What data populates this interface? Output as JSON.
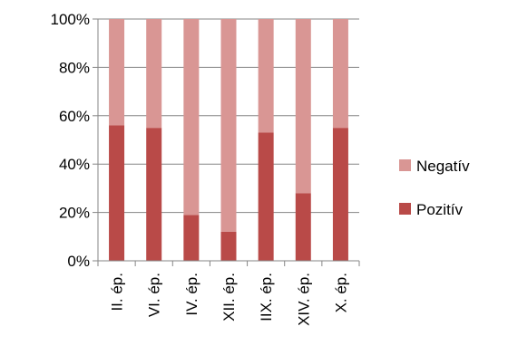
{
  "chart_data": {
    "type": "bar",
    "stacked": true,
    "percent_stacked": true,
    "categories": [
      "II. ép.",
      "VI. ép.",
      "IV. ép.",
      "XII. ép.",
      "IIX. ép.",
      "XIV. ép.",
      "X. ép."
    ],
    "series": [
      {
        "name": "Pozitív",
        "color": "#b94a48",
        "values": [
          56,
          55,
          19,
          12,
          53,
          28,
          55
        ]
      },
      {
        "name": "Negatív",
        "color": "#d99694",
        "values": [
          44,
          45,
          81,
          88,
          47,
          72,
          45
        ]
      }
    ],
    "ylim": [
      0,
      100
    ],
    "yticks": [
      0,
      20,
      40,
      60,
      80,
      100
    ],
    "ytick_labels": [
      "0%",
      "20%",
      "40%",
      "60%",
      "80%",
      "100%"
    ],
    "grid": true,
    "legend": {
      "position": "right",
      "order": [
        "Negatív",
        "Pozitív"
      ]
    }
  }
}
